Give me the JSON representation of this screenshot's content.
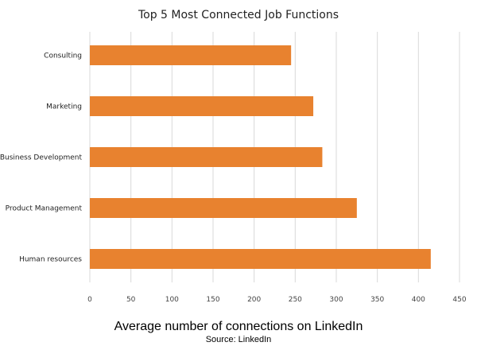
{
  "chart_data": {
    "type": "bar",
    "orientation": "horizontal",
    "title": "Top 5 Most Connected Job Functions",
    "xlabel": "Average number of connections on LinkedIn",
    "source": "Source: LinkedIn",
    "categories": [
      "Consulting",
      "Marketing",
      "Business Development",
      "Product Management",
      "Human resources"
    ],
    "values": [
      245,
      272,
      283,
      325,
      415
    ],
    "xlim": [
      0,
      450
    ],
    "xticks": [
      0,
      50,
      100,
      150,
      200,
      250,
      300,
      350,
      400,
      450
    ],
    "grid": true,
    "bar_color": "#E8822F",
    "grid_color": "#D9D9D9"
  }
}
